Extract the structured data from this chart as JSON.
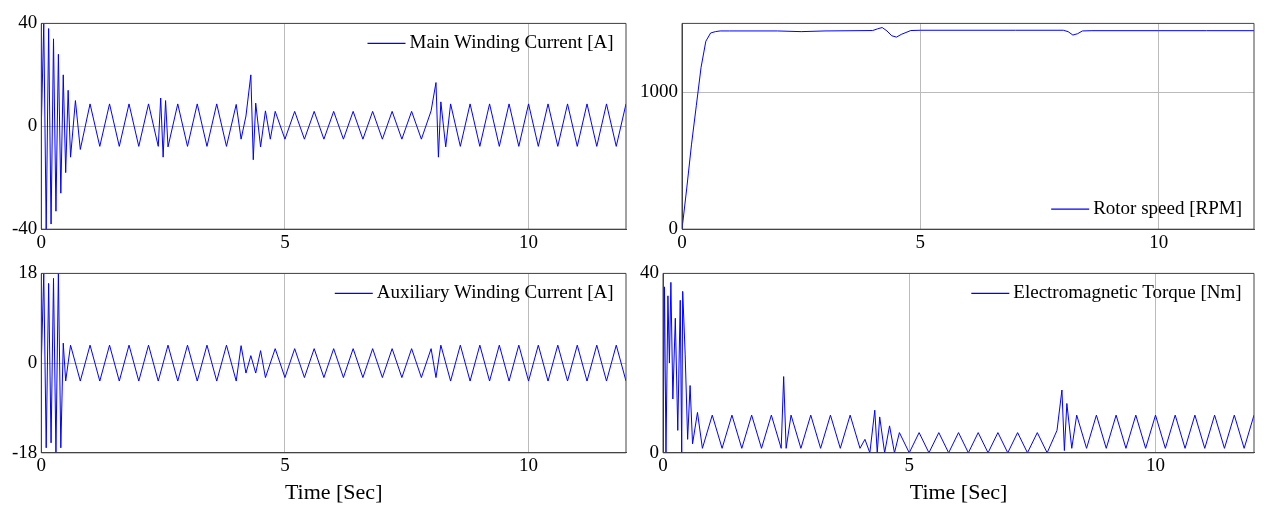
{
  "chart_data": [
    {
      "type": "line",
      "xlim": [
        0,
        12
      ],
      "xticks": [
        0,
        5,
        10
      ],
      "ylim": [
        -40,
        40
      ],
      "yticks": [
        -40,
        0,
        40
      ],
      "grid": true,
      "legend": "top right",
      "marker": "none",
      "line_style": "solid",
      "series": [
        {
          "name": "Main Winding Current [A]",
          "color": "#0000ff",
          "x": [
            0,
            0.05,
            0.1,
            0.15,
            0.2,
            0.25,
            0.3,
            0.35,
            0.4,
            0.45,
            0.5,
            0.55,
            0.6,
            0.7,
            0.8,
            1.0,
            1.2,
            1.4,
            1.6,
            1.8,
            2.0,
            2.2,
            2.4,
            2.45,
            2.5,
            2.55,
            2.6,
            2.8,
            3.0,
            3.2,
            3.4,
            3.6,
            3.8,
            4.0,
            4.1,
            4.2,
            4.3,
            4.35,
            4.4,
            4.5,
            4.6,
            4.7,
            4.8,
            5.0,
            5.2,
            5.4,
            5.6,
            5.8,
            6.0,
            6.2,
            6.4,
            6.6,
            6.8,
            7.0,
            7.2,
            7.4,
            7.6,
            7.8,
            8.0,
            8.1,
            8.15,
            8.2,
            8.3,
            8.4,
            8.6,
            8.8,
            9.0,
            9.2,
            9.4,
            9.6,
            9.8,
            10.0,
            10.2,
            10.4,
            10.6,
            10.8,
            11.0,
            11.2,
            11.4,
            11.6,
            11.8,
            12.0
          ],
          "values": [
            0,
            40,
            -40,
            38,
            -38,
            34,
            -33,
            28,
            -26,
            20,
            -18,
            14,
            -12,
            10,
            -9,
            8.7,
            -7.8,
            8.7,
            -7.8,
            8.7,
            -7.8,
            8.7,
            -7.8,
            11,
            -12,
            10,
            -8,
            8.7,
            -7.8,
            8.7,
            -7.8,
            8.7,
            -7.8,
            8.5,
            -5,
            4,
            20,
            -13,
            9,
            -8,
            6,
            -5,
            5.8,
            -5,
            5.8,
            -5,
            5.8,
            -5,
            5.8,
            -5,
            5.8,
            -5,
            5.8,
            -5,
            5.8,
            -5,
            5.8,
            -5,
            6,
            17,
            -12,
            9.5,
            -8,
            8.7,
            -7.8,
            8.7,
            -7.8,
            8.7,
            -7.8,
            8.7,
            -7.8,
            8.7,
            -7.8,
            8.7,
            -7.8,
            8.7,
            -7.8,
            8.7,
            -7.8,
            8.7,
            -7.8,
            8.7
          ]
        }
      ]
    },
    {
      "type": "line",
      "xlim": [
        0,
        12
      ],
      "xticks": [
        0,
        5,
        10
      ],
      "ylim": [
        0,
        1500
      ],
      "yticks": [
        0,
        1000
      ],
      "grid": true,
      "legend": "bottom right",
      "marker": "none",
      "line_style": "solid",
      "series": [
        {
          "name": "Rotor speed [RPM]",
          "color": "#0000ff",
          "x": [
            0,
            0.1,
            0.2,
            0.3,
            0.4,
            0.5,
            0.6,
            0.7,
            0.8,
            1,
            2,
            2.5,
            3,
            4,
            4.1,
            4.2,
            4.3,
            4.4,
            4.5,
            4.6,
            4.8,
            5,
            6,
            7,
            8,
            8.1,
            8.2,
            8.3,
            8.4,
            8.6,
            9,
            10,
            11,
            12
          ],
          "values": [
            0,
            300,
            620,
            900,
            1180,
            1370,
            1430,
            1440,
            1445,
            1445,
            1445,
            1440,
            1445,
            1448,
            1460,
            1470,
            1445,
            1410,
            1400,
            1420,
            1448,
            1450,
            1450,
            1450,
            1450,
            1440,
            1415,
            1425,
            1445,
            1447,
            1447,
            1447,
            1447,
            1447
          ]
        }
      ]
    },
    {
      "type": "line",
      "xlim": [
        0,
        12
      ],
      "xticks": [
        0,
        5,
        10
      ],
      "ylim": [
        -18,
        18
      ],
      "yticks": [
        -18,
        0,
        18
      ],
      "grid": true,
      "legend": "top right",
      "marker": "none",
      "line_style": "solid",
      "xlabel": "Time [Sec]",
      "series": [
        {
          "name": "Auxiliary Winding Current [A]",
          "color": "#0000ff",
          "x": [
            0,
            0.05,
            0.1,
            0.15,
            0.2,
            0.25,
            0.3,
            0.35,
            0.4,
            0.45,
            0.5,
            0.6,
            0.8,
            1.0,
            1.2,
            1.4,
            1.6,
            1.8,
            2.0,
            2.2,
            2.4,
            2.6,
            2.8,
            3.0,
            3.2,
            3.4,
            3.6,
            3.8,
            4.0,
            4.1,
            4.2,
            4.3,
            4.4,
            4.5,
            4.6,
            4.8,
            5.0,
            5.2,
            5.4,
            5.6,
            5.8,
            6.0,
            6.2,
            6.4,
            6.6,
            6.8,
            7.0,
            7.2,
            7.4,
            7.6,
            7.8,
            8.0,
            8.1,
            8.2,
            8.4,
            8.6,
            8.8,
            9.0,
            9.2,
            9.4,
            9.6,
            9.8,
            10.0,
            10.2,
            10.4,
            10.6,
            10.8,
            11.0,
            11.2,
            11.4,
            11.6,
            11.8,
            12.0
          ],
          "values": [
            0,
            18,
            -17,
            16,
            -16,
            17,
            -18,
            18,
            -17,
            4,
            -3.6,
            3.6,
            -3.6,
            3.6,
            -3.6,
            3.6,
            -3.6,
            3.6,
            -3.6,
            3.6,
            -3.6,
            3.6,
            -3.6,
            3.6,
            -3.6,
            3.6,
            -3.6,
            3.6,
            -3.6,
            3.5,
            -2,
            1.5,
            -2,
            2.5,
            -2.9,
            2.9,
            -2.9,
            2.9,
            -2.9,
            2.9,
            -2.9,
            2.9,
            -2.9,
            2.9,
            -2.9,
            2.9,
            -2.9,
            2.9,
            -2.9,
            2.9,
            -2.9,
            2.9,
            -2.9,
            3.6,
            -3.6,
            3.6,
            -3.6,
            3.6,
            -3.6,
            3.6,
            -3.6,
            3.6,
            -3.6,
            3.6,
            -3.6,
            3.6,
            -3.6,
            3.6,
            -3.6,
            3.6,
            -3.6,
            3.6,
            -3.6
          ]
        }
      ]
    },
    {
      "type": "line",
      "xlim": [
        0,
        12
      ],
      "xticks": [
        0,
        5,
        10
      ],
      "ylim": [
        0,
        40
      ],
      "yticks": [
        0,
        40
      ],
      "grid": true,
      "legend": "top right",
      "marker": "none",
      "line_style": "solid",
      "xlabel": "Time [Sec]",
      "series": [
        {
          "name": "Electromagnetic Torque [Nm]",
          "color": "#0000ff",
          "x": [
            0,
            0.03,
            0.06,
            0.1,
            0.13,
            0.16,
            0.2,
            0.25,
            0.3,
            0.35,
            0.38,
            0.4,
            0.45,
            0.5,
            0.55,
            0.6,
            0.7,
            0.8,
            1.0,
            1.2,
            1.4,
            1.6,
            1.8,
            2.0,
            2.2,
            2.4,
            2.45,
            2.5,
            2.6,
            2.8,
            3.0,
            3.2,
            3.4,
            3.6,
            3.8,
            4.0,
            4.1,
            4.2,
            4.3,
            4.35,
            4.4,
            4.5,
            4.6,
            4.7,
            4.8,
            5.0,
            5.2,
            5.4,
            5.6,
            5.8,
            6.0,
            6.2,
            6.4,
            6.6,
            6.8,
            7.0,
            7.2,
            7.4,
            7.6,
            7.8,
            8.0,
            8.1,
            8.15,
            8.2,
            8.3,
            8.4,
            8.6,
            8.8,
            9.0,
            9.2,
            9.4,
            9.6,
            9.8,
            10.0,
            10.2,
            10.4,
            10.6,
            10.8,
            11.0,
            11.2,
            11.4,
            11.6,
            11.8,
            12.0
          ],
          "values": [
            0,
            37,
            0,
            35,
            20,
            38,
            12,
            30,
            5,
            34,
            0,
            36,
            22,
            3,
            15,
            2,
            9,
            1,
            8.4,
            1,
            8.4,
            1,
            8.4,
            1,
            8.4,
            1,
            17,
            1,
            8.4,
            1,
            8.4,
            1,
            8.4,
            1,
            8.4,
            1,
            3,
            0,
            9.5,
            0,
            8,
            0,
            6,
            0,
            4.5,
            0,
            4.5,
            0,
            4.5,
            0,
            4.5,
            0,
            4.5,
            0,
            4.5,
            0,
            4.5,
            0,
            4.5,
            0,
            5,
            14,
            0.5,
            11,
            1,
            8.4,
            1,
            8.4,
            1,
            8.4,
            1,
            8.4,
            1,
            8.4,
            1,
            8.4,
            1,
            8.4,
            1,
            8.4,
            1,
            8.4,
            1,
            8.4
          ]
        }
      ]
    }
  ]
}
